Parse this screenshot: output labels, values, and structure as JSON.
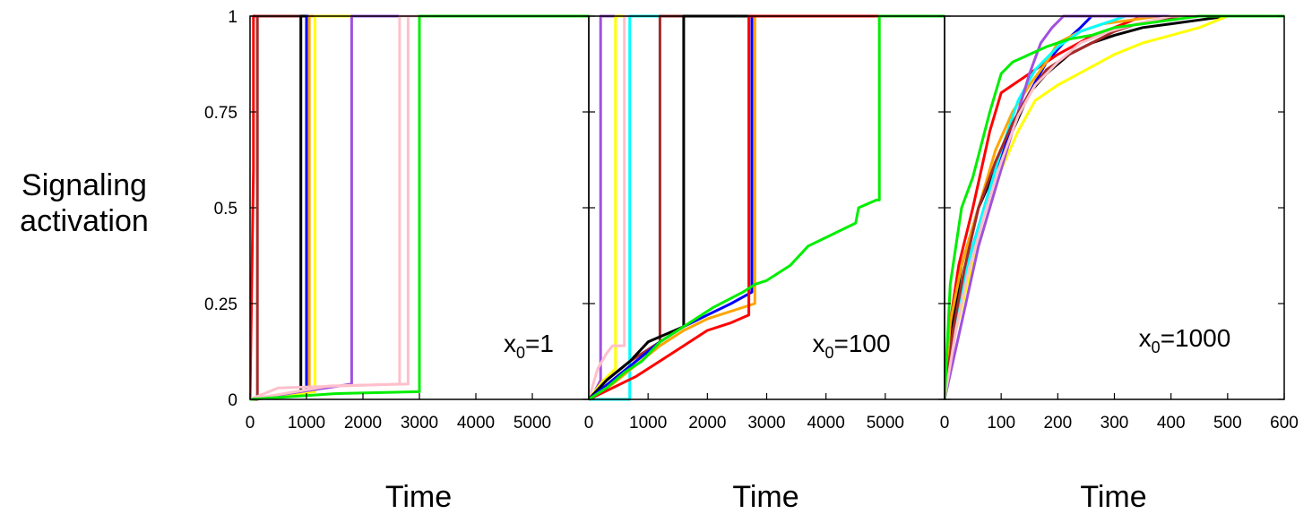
{
  "chart_data": {
    "type": "line",
    "ylabel_lines": [
      "Signaling",
      "activation"
    ],
    "yticks": [
      "0",
      "0.25",
      "0.5",
      "0.75",
      "1"
    ],
    "ylim": [
      0,
      1
    ],
    "grid": false,
    "panels": [
      {
        "annotation": {
          "base": "x",
          "sub": "0",
          "rest": "=1"
        },
        "xlabel": "Time",
        "xlim": [
          0,
          6000
        ],
        "xticks": [
          "0",
          "1000",
          "2000",
          "3000",
          "4000",
          "5000"
        ],
        "xtick_values": [
          0,
          1000,
          2000,
          3000,
          4000,
          5000
        ],
        "series": [
          {
            "color": "#ff0000",
            "x": [
              0,
              30,
              60,
              60,
              6000
            ],
            "y": [
              0,
              0.3,
              0.6,
              1,
              1
            ]
          },
          {
            "color": "#a52a2a",
            "x": [
              0,
              100,
              130,
              130,
              6000
            ],
            "y": [
              0,
              0,
              0,
              1,
              1
            ]
          },
          {
            "color": "#000000",
            "x": [
              0,
              400,
              900,
              900,
              6000
            ],
            "y": [
              0,
              0.005,
              0.01,
              1,
              1
            ]
          },
          {
            "color": "#0000ff",
            "x": [
              0,
              500,
              1000,
              1000,
              6000
            ],
            "y": [
              0,
              0.01,
              0.02,
              1,
              1
            ]
          },
          {
            "color": "#ffa500",
            "x": [
              0,
              500,
              1050,
              1050,
              6000
            ],
            "y": [
              0,
              0.01,
              0.02,
              1,
              1
            ]
          },
          {
            "color": "#ffff00",
            "x": [
              0,
              600,
              1150,
              1150,
              6000
            ],
            "y": [
              0,
              0.01,
              0.02,
              1,
              1
            ]
          },
          {
            "color": "#a050e0",
            "x": [
              0,
              900,
              1800,
              1800,
              6000
            ],
            "y": [
              0,
              0.02,
              0.04,
              1,
              1
            ]
          },
          {
            "color": "#ffc0cb",
            "x": [
              0,
              500,
              2650,
              2650,
              6000
            ],
            "y": [
              0,
              0.03,
              0.04,
              1,
              1
            ]
          },
          {
            "color": "#ffc0cb",
            "x": [
              0,
              1400,
              2800,
              2800,
              6000
            ],
            "y": [
              0,
              0.035,
              0.04,
              1,
              1
            ]
          },
          {
            "color": "#00ee00",
            "x": [
              0,
              1500,
              3000,
              3000,
              6000
            ],
            "y": [
              0,
              0.015,
              0.02,
              1,
              1
            ]
          }
        ]
      },
      {
        "annotation": {
          "base": "x",
          "sub": "0",
          "rest": "=100"
        },
        "xlabel": "Time",
        "xlim": [
          0,
          6000
        ],
        "xticks": [
          "0",
          "1000",
          "2000",
          "3000",
          "4000",
          "5000"
        ],
        "xtick_values": [
          0,
          1000,
          2000,
          3000,
          4000,
          5000
        ],
        "series": [
          {
            "color": "#a050e0",
            "x": [
              0,
              100,
              200,
              200,
              6000
            ],
            "y": [
              0,
              0.02,
              0.05,
              1,
              1
            ]
          },
          {
            "color": "#ffff00",
            "x": [
              0,
              250,
              450,
              450,
              6000
            ],
            "y": [
              0,
              0.05,
              0.08,
              1,
              1
            ]
          },
          {
            "color": "#ffc0cb",
            "x": [
              0,
              150,
              300,
              400,
              600,
              600,
              6000
            ],
            "y": [
              0,
              0.08,
              0.12,
              0.14,
              0.14,
              1,
              1
            ]
          },
          {
            "color": "#00ffff",
            "x": [
              0,
              300,
              690,
              690,
              6000
            ],
            "y": [
              0,
              0,
              0,
              1,
              1
            ]
          },
          {
            "color": "#a52a2a",
            "x": [
              0,
              300,
              700,
              1200,
              1200,
              6000
            ],
            "y": [
              0,
              0.05,
              0.1,
              0.15,
              1,
              1
            ]
          },
          {
            "color": "#000000",
            "x": [
              0,
              300,
              700,
              1000,
              1300,
              1600,
              1600,
              6000
            ],
            "y": [
              0,
              0.05,
              0.1,
              0.15,
              0.17,
              0.19,
              1,
              1
            ]
          },
          {
            "color": "#0000ff",
            "x": [
              0,
              400,
              800,
              1200,
              1600,
              2000,
              2400,
              2750,
              2750,
              6000
            ],
            "y": [
              0,
              0.05,
              0.1,
              0.15,
              0.19,
              0.22,
              0.25,
              0.28,
              1,
              1
            ]
          },
          {
            "color": "#ffa500",
            "x": [
              0,
              400,
              800,
              1200,
              1600,
              2000,
              2400,
              2800,
              2800,
              6000
            ],
            "y": [
              0,
              0.04,
              0.09,
              0.14,
              0.18,
              0.21,
              0.23,
              0.25,
              1,
              1
            ]
          },
          {
            "color": "#ff0000",
            "x": [
              0,
              400,
              800,
              1200,
              1600,
              2000,
              2400,
              2700,
              2700,
              6000
            ],
            "y": [
              0,
              0.03,
              0.06,
              0.1,
              0.14,
              0.18,
              0.2,
              0.22,
              1,
              1
            ]
          },
          {
            "color": "#00ee00",
            "x": [
              0,
              300,
              600,
              900,
              1200,
              1700,
              2100,
              2600,
              2800,
              3000,
              3400,
              3700,
              4100,
              4500,
              4550,
              4850,
              4900,
              4900,
              6000
            ],
            "y": [
              0,
              0.03,
              0.07,
              0.1,
              0.15,
              0.2,
              0.24,
              0.28,
              0.3,
              0.31,
              0.35,
              0.4,
              0.43,
              0.46,
              0.5,
              0.52,
              0.52,
              1,
              1
            ]
          }
        ]
      },
      {
        "annotation": {
          "base": "x",
          "sub": "0",
          "rest": "=1000"
        },
        "xlabel": "Time",
        "xlim": [
          0,
          600
        ],
        "xticks": [
          "0",
          "100",
          "200",
          "300",
          "400",
          "500",
          "600"
        ],
        "xtick_values": [
          0,
          100,
          200,
          300,
          400,
          500,
          600
        ],
        "series": [
          {
            "color": "#000000",
            "x": [
              0,
              15,
              30,
              60,
              90,
              120,
              150,
              180,
              220,
              260,
              300,
              350,
              400,
              450,
              500,
              600
            ],
            "y": [
              0,
              0.2,
              0.35,
              0.5,
              0.6,
              0.7,
              0.8,
              0.85,
              0.9,
              0.93,
              0.95,
              0.97,
              0.98,
              0.99,
              1,
              1
            ]
          },
          {
            "color": "#0000ff",
            "x": [
              0,
              15,
              30,
              60,
              90,
              120,
              150,
              180,
              210,
              240,
              260,
              600
            ],
            "y": [
              0,
              0.15,
              0.3,
              0.45,
              0.6,
              0.72,
              0.8,
              0.88,
              0.93,
              0.97,
              1,
              1
            ]
          },
          {
            "color": "#ff0000",
            "x": [
              0,
              10,
              25,
              50,
              80,
              100,
              130,
              160,
              200,
              250,
              300,
              350,
              600
            ],
            "y": [
              0,
              0.2,
              0.35,
              0.5,
              0.7,
              0.8,
              0.83,
              0.86,
              0.9,
              0.94,
              0.97,
              1,
              1
            ]
          },
          {
            "color": "#ffff00",
            "x": [
              0,
              15,
              40,
              70,
              100,
              130,
              160,
              200,
              250,
              300,
              350,
              400,
              450,
              500,
              600
            ],
            "y": [
              0,
              0.15,
              0.3,
              0.45,
              0.6,
              0.7,
              0.78,
              0.82,
              0.86,
              0.9,
              0.93,
              0.95,
              0.97,
              1,
              1
            ]
          },
          {
            "color": "#ffa500",
            "x": [
              0,
              10,
              30,
              60,
              90,
              120,
              150,
              180,
              200,
              240,
              280,
              330,
              380,
              450,
              600
            ],
            "y": [
              0,
              0.2,
              0.35,
              0.5,
              0.65,
              0.75,
              0.82,
              0.88,
              0.93,
              0.96,
              0.98,
              0.99,
              1,
              1,
              1
            ]
          },
          {
            "color": "#00ffff",
            "x": [
              0,
              20,
              40,
              70,
              100,
              130,
              160,
              200,
              240,
              280,
              320,
              600
            ],
            "y": [
              0,
              0.2,
              0.35,
              0.5,
              0.65,
              0.78,
              0.86,
              0.92,
              0.96,
              0.98,
              1,
              1
            ]
          },
          {
            "color": "#a050e0",
            "x": [
              0,
              30,
              60,
              90,
              120,
              150,
              170,
              190,
              210,
              600
            ],
            "y": [
              0,
              0.2,
              0.4,
              0.55,
              0.7,
              0.85,
              0.93,
              0.97,
              1,
              1
            ]
          },
          {
            "color": "#a52a2a",
            "x": [
              0,
              15,
              35,
              60,
              90,
              120,
              150,
              180,
              220,
              260,
              300,
              340,
              380,
              420,
              600
            ],
            "y": [
              0,
              0.18,
              0.34,
              0.5,
              0.62,
              0.72,
              0.8,
              0.86,
              0.9,
              0.93,
              0.96,
              0.98,
              0.99,
              1,
              1
            ]
          },
          {
            "color": "#ffc0cb",
            "x": [
              0,
              20,
              40,
              70,
              100,
              130,
              160,
              200,
              240,
              290,
              340,
              400,
              600
            ],
            "y": [
              0,
              0.18,
              0.32,
              0.48,
              0.62,
              0.74,
              0.82,
              0.88,
              0.93,
              0.96,
              0.98,
              1,
              1
            ]
          },
          {
            "color": "#00ee00",
            "x": [
              0,
              10,
              30,
              50,
              80,
              100,
              120,
              150,
              180,
              220,
              260,
              300,
              350,
              400,
              450,
              600
            ],
            "y": [
              0,
              0.3,
              0.5,
              0.58,
              0.75,
              0.85,
              0.88,
              0.9,
              0.92,
              0.94,
              0.95,
              0.97,
              0.98,
              0.99,
              1,
              1
            ]
          }
        ]
      }
    ]
  }
}
